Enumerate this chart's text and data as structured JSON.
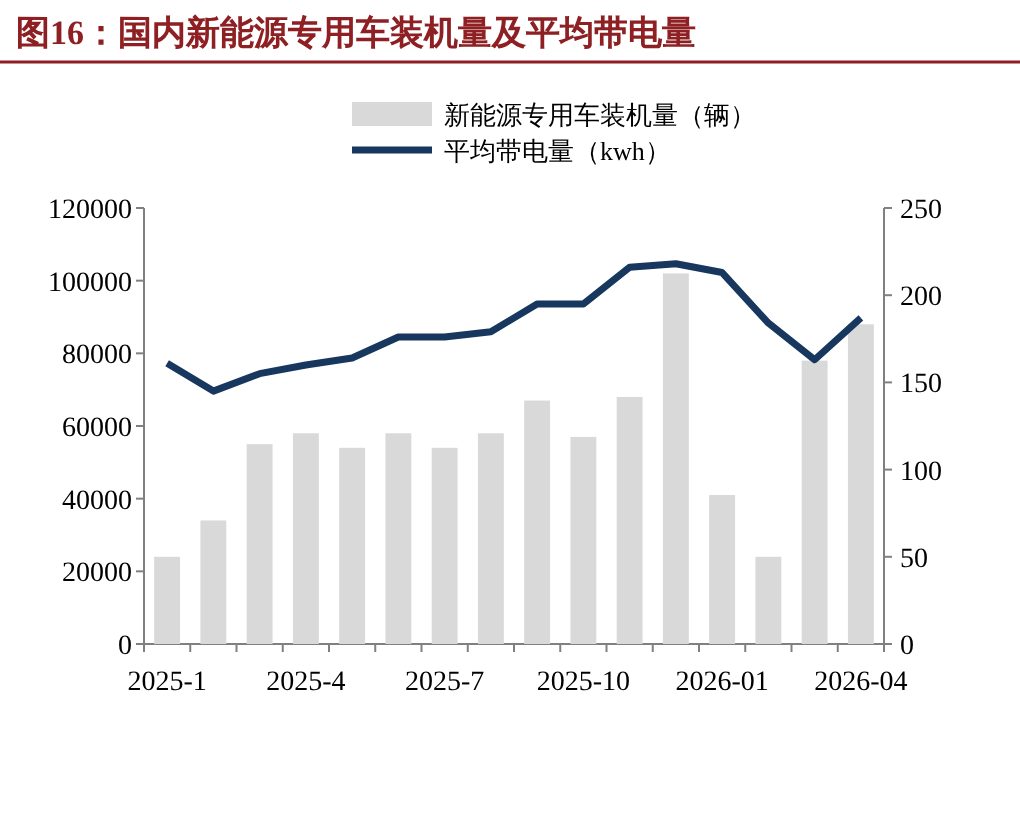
{
  "chart_data": {
    "type": "bar",
    "title": "图16：国内新能源专用车装机量及平均带电量",
    "categories": [
      "2025-1",
      null,
      null,
      "2025-4",
      null,
      null,
      "2025-7",
      null,
      null,
      "2025-10",
      null,
      null,
      "2026-01",
      null,
      null,
      "2026-04"
    ],
    "series": [
      {
        "name": "新能源专用车装机量（辆）",
        "color": "#d9d9d9",
        "values": [
          24000,
          34000,
          55000,
          58000,
          54000,
          58000,
          54000,
          58000,
          67000,
          57000,
          68000,
          102000,
          41000,
          24000,
          78000,
          88000
        ]
      },
      {
        "name": "平均带电量（kwh）",
        "type": "line",
        "axis": "y2",
        "color": "#17375e",
        "values": [
          161,
          145,
          155,
          160,
          164,
          176,
          176,
          179,
          195,
          195,
          216,
          218,
          213,
          184,
          163,
          187
        ]
      }
    ],
    "ylim": [
      0,
      120000
    ],
    "yticks": [
      0,
      20000,
      40000,
      60000,
      80000,
      100000,
      120000
    ],
    "y2lim": [
      0,
      250
    ],
    "y2ticks": [
      0,
      50,
      100,
      150,
      200,
      250
    ],
    "legend": "top",
    "grid": false,
    "marker": "none"
  }
}
